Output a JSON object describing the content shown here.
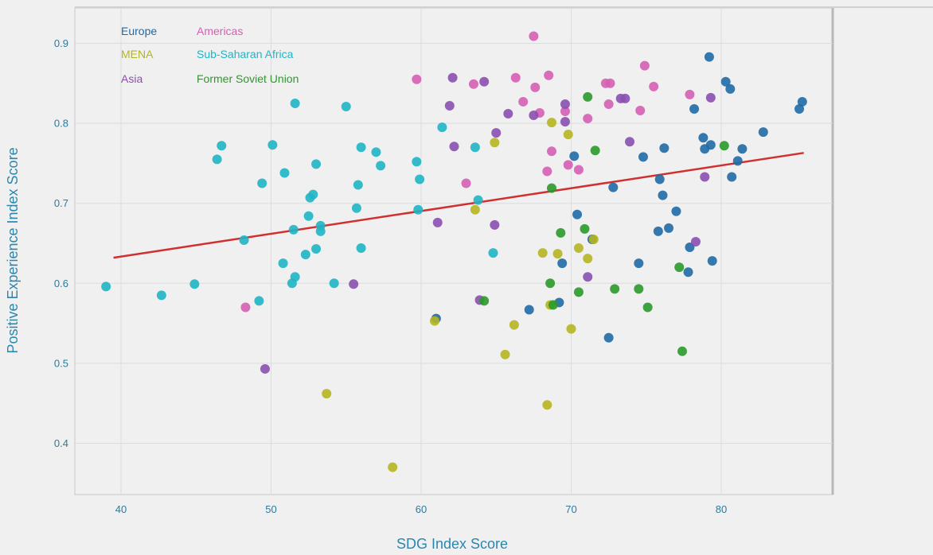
{
  "chart_data": {
    "type": "scatter",
    "title": "",
    "xlabel": "SDG Index Score",
    "ylabel": "Positive Experience Index Score",
    "xlim": [
      37,
      87.5
    ],
    "ylim": [
      0.34,
      0.95
    ],
    "xticks": [
      40,
      50,
      60,
      70,
      80
    ],
    "yticks": [
      0.4,
      0.5,
      0.6,
      0.7,
      0.8,
      0.9
    ],
    "xtick_labels": [
      "40",
      "50",
      "60",
      "70",
      "80"
    ],
    "ytick_labels": [
      "0.4",
      "0.5",
      "0.6",
      "0.7",
      "0.8",
      "0.9"
    ],
    "grid": true,
    "legend_position": "top-left",
    "trendline": {
      "color": "#d03030",
      "points": [
        [
          39.5,
          0.632
        ],
        [
          85.5,
          0.763
        ]
      ]
    },
    "series": [
      {
        "name": "Europe",
        "color": "#1f6aa5",
        "points": [
          [
            79.2,
            0.883
          ],
          [
            80.3,
            0.852
          ],
          [
            80.6,
            0.843
          ],
          [
            85.4,
            0.827
          ],
          [
            85.2,
            0.818
          ],
          [
            78.2,
            0.818
          ],
          [
            82.8,
            0.789
          ],
          [
            78.8,
            0.782
          ],
          [
            79.3,
            0.773
          ],
          [
            78.9,
            0.768
          ],
          [
            81.4,
            0.768
          ],
          [
            76.2,
            0.769
          ],
          [
            74.8,
            0.758
          ],
          [
            70.2,
            0.759
          ],
          [
            81.1,
            0.753
          ],
          [
            80.7,
            0.733
          ],
          [
            76.1,
            0.71
          ],
          [
            75.9,
            0.73
          ],
          [
            72.8,
            0.72
          ],
          [
            77.0,
            0.69
          ],
          [
            70.4,
            0.686
          ],
          [
            76.5,
            0.669
          ],
          [
            75.8,
            0.665
          ],
          [
            71.4,
            0.655
          ],
          [
            77.9,
            0.645
          ],
          [
            79.4,
            0.628
          ],
          [
            74.5,
            0.625
          ],
          [
            69.4,
            0.625
          ],
          [
            77.8,
            0.614
          ],
          [
            69.2,
            0.576
          ],
          [
            67.2,
            0.567
          ],
          [
            72.5,
            0.532
          ],
          [
            61.0,
            0.556
          ]
        ]
      },
      {
        "name": "Americas",
        "color": "#d55fb3",
        "points": [
          [
            67.5,
            0.909
          ],
          [
            74.9,
            0.872
          ],
          [
            59.7,
            0.855
          ],
          [
            63.5,
            0.849
          ],
          [
            66.3,
            0.857
          ],
          [
            68.5,
            0.86
          ],
          [
            72.3,
            0.85
          ],
          [
            72.6,
            0.85
          ],
          [
            75.5,
            0.846
          ],
          [
            67.6,
            0.845
          ],
          [
            66.8,
            0.827
          ],
          [
            72.5,
            0.824
          ],
          [
            71.1,
            0.806
          ],
          [
            67.9,
            0.813
          ],
          [
            69.6,
            0.815
          ],
          [
            77.9,
            0.836
          ],
          [
            74.6,
            0.816
          ],
          [
            68.7,
            0.765
          ],
          [
            69.8,
            0.748
          ],
          [
            70.5,
            0.742
          ],
          [
            68.4,
            0.74
          ],
          [
            63.0,
            0.725
          ],
          [
            48.3,
            0.57
          ]
        ]
      },
      {
        "name": "MENA",
        "color": "#b5b520",
        "points": [
          [
            68.7,
            0.801
          ],
          [
            69.8,
            0.786
          ],
          [
            64.9,
            0.776
          ],
          [
            63.6,
            0.692
          ],
          [
            68.1,
            0.638
          ],
          [
            69.1,
            0.637
          ],
          [
            70.5,
            0.644
          ],
          [
            71.5,
            0.655
          ],
          [
            71.1,
            0.631
          ],
          [
            68.6,
            0.573
          ],
          [
            60.9,
            0.553
          ],
          [
            66.2,
            0.548
          ],
          [
            70.0,
            0.543
          ],
          [
            65.6,
            0.511
          ],
          [
            53.7,
            0.462
          ],
          [
            68.4,
            0.448
          ],
          [
            58.1,
            0.37
          ]
        ]
      },
      {
        "name": "Sub-Saharan Africa",
        "color": "#1fb5c4",
        "points": [
          [
            51.6,
            0.825
          ],
          [
            55.0,
            0.821
          ],
          [
            61.4,
            0.795
          ],
          [
            46.7,
            0.772
          ],
          [
            50.1,
            0.773
          ],
          [
            56.0,
            0.77
          ],
          [
            57.0,
            0.764
          ],
          [
            63.6,
            0.77
          ],
          [
            46.4,
            0.755
          ],
          [
            57.3,
            0.747
          ],
          [
            53.0,
            0.749
          ],
          [
            59.7,
            0.752
          ],
          [
            50.9,
            0.738
          ],
          [
            59.9,
            0.73
          ],
          [
            49.4,
            0.725
          ],
          [
            55.8,
            0.723
          ],
          [
            52.6,
            0.707
          ],
          [
            52.8,
            0.711
          ],
          [
            63.8,
            0.704
          ],
          [
            55.7,
            0.694
          ],
          [
            59.8,
            0.692
          ],
          [
            52.5,
            0.684
          ],
          [
            53.3,
            0.672
          ],
          [
            51.5,
            0.667
          ],
          [
            53.3,
            0.665
          ],
          [
            48.2,
            0.654
          ],
          [
            53.0,
            0.643
          ],
          [
            56.0,
            0.644
          ],
          [
            52.3,
            0.636
          ],
          [
            64.8,
            0.638
          ],
          [
            50.8,
            0.625
          ],
          [
            51.6,
            0.608
          ],
          [
            51.4,
            0.6
          ],
          [
            54.2,
            0.6
          ],
          [
            39.0,
            0.596
          ],
          [
            44.9,
            0.599
          ],
          [
            42.7,
            0.585
          ],
          [
            49.2,
            0.578
          ]
        ]
      },
      {
        "name": "Asia",
        "color": "#8a4fb0",
        "points": [
          [
            62.1,
            0.857
          ],
          [
            64.2,
            0.852
          ],
          [
            61.9,
            0.822
          ],
          [
            69.6,
            0.824
          ],
          [
            73.3,
            0.831
          ],
          [
            73.6,
            0.831
          ],
          [
            65.8,
            0.812
          ],
          [
            67.5,
            0.81
          ],
          [
            69.6,
            0.802
          ],
          [
            65.0,
            0.788
          ],
          [
            73.9,
            0.777
          ],
          [
            62.2,
            0.771
          ],
          [
            79.3,
            0.832
          ],
          [
            78.9,
            0.733
          ],
          [
            61.1,
            0.676
          ],
          [
            64.9,
            0.673
          ],
          [
            78.3,
            0.652
          ],
          [
            71.1,
            0.608
          ],
          [
            55.5,
            0.599
          ],
          [
            63.9,
            0.579
          ],
          [
            49.6,
            0.493
          ]
        ]
      },
      {
        "name": "Former Soviet Union",
        "color": "#2a9a2a",
        "points": [
          [
            71.1,
            0.833
          ],
          [
            71.6,
            0.766
          ],
          [
            80.2,
            0.772
          ],
          [
            68.7,
            0.719
          ],
          [
            69.3,
            0.663
          ],
          [
            70.9,
            0.668
          ],
          [
            77.2,
            0.62
          ],
          [
            68.6,
            0.6
          ],
          [
            72.9,
            0.593
          ],
          [
            74.5,
            0.593
          ],
          [
            70.5,
            0.589
          ],
          [
            64.2,
            0.578
          ],
          [
            68.8,
            0.573
          ],
          [
            75.1,
            0.57
          ],
          [
            77.4,
            0.515
          ]
        ]
      }
    ]
  }
}
